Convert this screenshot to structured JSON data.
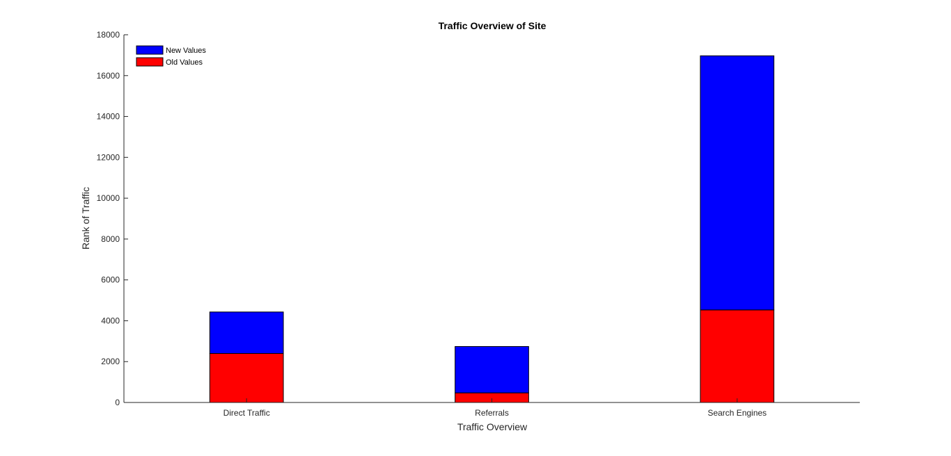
{
  "chart_data": {
    "type": "bar",
    "stacked": true,
    "title": "Traffic Overview of Site",
    "xlabel": "Traffic Overview",
    "ylabel": "Rank of Traffic",
    "categories": [
      "Direct Traffic",
      "Referrals",
      "Search Engines"
    ],
    "series": [
      {
        "name": "Old Values",
        "values": [
          2400,
          470,
          4530
        ],
        "color": "#ff0000"
      },
      {
        "name": "New Values",
        "values": [
          2030,
          2270,
          12440
        ],
        "color": "#0000ff"
      }
    ],
    "ylim": [
      0,
      18000
    ],
    "yticks": [
      "0",
      "2000",
      "4000",
      "6000",
      "8000",
      "10000",
      "12000",
      "14000",
      "16000",
      "18000"
    ],
    "grid": false,
    "legend": {
      "position": "top-left",
      "entries": [
        "New Values",
        "Old Values"
      ]
    }
  }
}
